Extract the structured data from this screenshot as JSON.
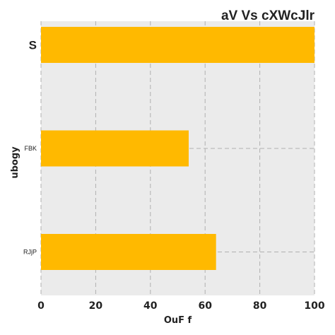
{
  "chart_data": {
    "type": "bar",
    "orientation": "horizontal",
    "title": "aV Vs cXWcJlr",
    "xlabel": "OuF f",
    "ylabel": "ubogy",
    "categories": [
      "S",
      "FBK",
      "RJjP"
    ],
    "values": [
      100,
      54,
      64
    ],
    "xlim": [
      0,
      100
    ],
    "xticks": [
      "0",
      "20",
      "40",
      "60",
      "80",
      "100"
    ],
    "grid": true,
    "bar_color": "#FFB900",
    "background_color": "#EBEBEB",
    "grid_color": "#B0B0B0"
  }
}
